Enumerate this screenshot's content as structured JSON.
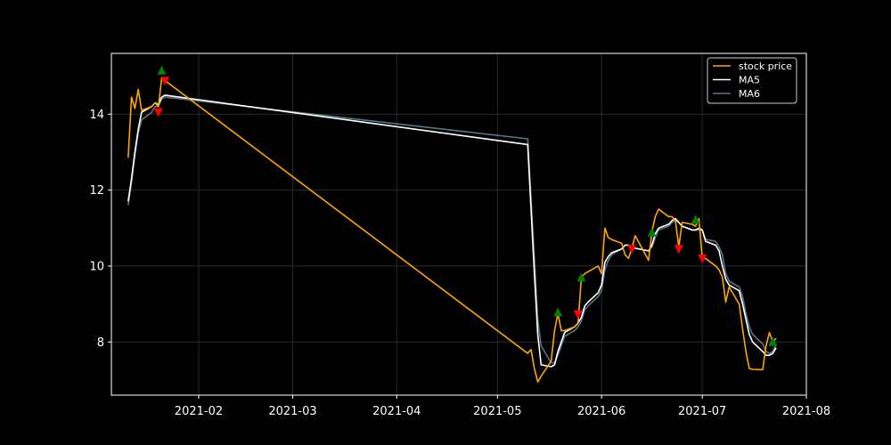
{
  "chart_data": {
    "type": "line",
    "title": "",
    "xlabel": "",
    "ylabel": "",
    "background": "#000000",
    "grid": true,
    "legend_position": "top-right",
    "xlim": [
      "2021-01-06",
      "2021-08-01"
    ],
    "ylim": [
      6.6,
      15.6
    ],
    "x_ticks": [
      "2021-02",
      "2021-03",
      "2021-04",
      "2021-05",
      "2021-06",
      "2021-07",
      "2021-08"
    ],
    "y_ticks": [
      8,
      10,
      12,
      14
    ],
    "series": [
      {
        "name": "stock price",
        "color": "#ffa500",
        "points": [
          [
            "2021-01-11",
            12.85
          ],
          [
            "2021-01-12",
            14.45
          ],
          [
            "2021-01-13",
            14.15
          ],
          [
            "2021-01-14",
            14.65
          ],
          [
            "2021-01-15",
            14.1
          ],
          [
            "2021-01-18",
            14.2
          ],
          [
            "2021-01-19",
            14.3
          ],
          [
            "2021-01-20",
            14.2
          ],
          [
            "2021-01-21",
            14.95
          ],
          [
            "2021-05-10",
            7.7
          ],
          [
            "2021-05-11",
            7.8
          ],
          [
            "2021-05-12",
            7.3
          ],
          [
            "2021-05-13",
            6.95
          ],
          [
            "2021-05-14",
            7.1
          ],
          [
            "2021-05-17",
            7.5
          ],
          [
            "2021-05-18",
            8.3
          ],
          [
            "2021-05-19",
            8.75
          ],
          [
            "2021-05-20",
            8.3
          ],
          [
            "2021-05-21",
            8.3
          ],
          [
            "2021-05-24",
            8.4
          ],
          [
            "2021-05-25",
            8.5
          ],
          [
            "2021-05-26",
            9.7
          ],
          [
            "2021-05-27",
            9.8
          ],
          [
            "2021-05-28",
            9.85
          ],
          [
            "2021-05-31",
            10.0
          ],
          [
            "2021-06-01",
            9.8
          ],
          [
            "2021-06-02",
            11.0
          ],
          [
            "2021-06-03",
            10.75
          ],
          [
            "2021-06-04",
            10.7
          ],
          [
            "2021-06-07",
            10.6
          ],
          [
            "2021-06-08",
            10.3
          ],
          [
            "2021-06-09",
            10.2
          ],
          [
            "2021-06-10",
            10.45
          ],
          [
            "2021-06-11",
            10.8
          ],
          [
            "2021-06-15",
            10.15
          ],
          [
            "2021-06-16",
            10.9
          ],
          [
            "2021-06-17",
            11.3
          ],
          [
            "2021-06-18",
            11.5
          ],
          [
            "2021-06-21",
            11.3
          ],
          [
            "2021-06-22",
            11.3
          ],
          [
            "2021-06-23",
            11.2
          ],
          [
            "2021-06-24",
            10.5
          ],
          [
            "2021-06-25",
            11.15
          ],
          [
            "2021-06-28",
            11.1
          ],
          [
            "2021-06-29",
            11.05
          ],
          [
            "2021-06-30",
            11.25
          ],
          [
            "2021-07-01",
            10.2
          ],
          [
            "2021-07-02",
            10.2
          ],
          [
            "2021-07-05",
            10.0
          ],
          [
            "2021-07-06",
            9.9
          ],
          [
            "2021-07-07",
            9.7
          ],
          [
            "2021-07-08",
            9.05
          ],
          [
            "2021-07-09",
            9.45
          ],
          [
            "2021-07-12",
            9.0
          ],
          [
            "2021-07-13",
            8.35
          ],
          [
            "2021-07-14",
            7.75
          ],
          [
            "2021-07-15",
            7.3
          ],
          [
            "2021-07-16",
            7.28
          ],
          [
            "2021-07-19",
            7.27
          ],
          [
            "2021-07-20",
            7.9
          ],
          [
            "2021-07-21",
            8.25
          ],
          [
            "2021-07-22",
            8.0
          ],
          [
            "2021-07-23",
            8.1
          ]
        ]
      },
      {
        "name": "MA5",
        "color": "#ffffff",
        "points": [
          [
            "2021-01-11",
            11.7
          ],
          [
            "2021-01-12",
            12.3
          ],
          [
            "2021-01-13",
            13.0
          ],
          [
            "2021-01-14",
            13.6
          ],
          [
            "2021-01-15",
            14.05
          ],
          [
            "2021-01-18",
            14.2
          ],
          [
            "2021-01-19",
            14.3
          ],
          [
            "2021-01-20",
            14.25
          ],
          [
            "2021-01-21",
            14.45
          ],
          [
            "2021-01-22",
            14.5
          ],
          [
            "2021-05-10",
            13.2
          ],
          [
            "2021-05-11",
            11.5
          ],
          [
            "2021-05-12",
            9.8
          ],
          [
            "2021-05-13",
            8.2
          ],
          [
            "2021-05-14",
            7.4
          ],
          [
            "2021-05-17",
            7.35
          ],
          [
            "2021-05-18",
            7.4
          ],
          [
            "2021-05-19",
            7.75
          ],
          [
            "2021-05-20",
            8.0
          ],
          [
            "2021-05-21",
            8.25
          ],
          [
            "2021-05-24",
            8.4
          ],
          [
            "2021-05-25",
            8.5
          ],
          [
            "2021-05-26",
            8.65
          ],
          [
            "2021-05-27",
            8.95
          ],
          [
            "2021-05-28",
            9.05
          ],
          [
            "2021-05-31",
            9.3
          ],
          [
            "2021-06-01",
            9.5
          ],
          [
            "2021-06-02",
            10.1
          ],
          [
            "2021-06-03",
            10.25
          ],
          [
            "2021-06-04",
            10.35
          ],
          [
            "2021-06-07",
            10.45
          ],
          [
            "2021-06-08",
            10.55
          ],
          [
            "2021-06-09",
            10.55
          ],
          [
            "2021-06-10",
            10.5
          ],
          [
            "2021-06-11",
            10.47
          ],
          [
            "2021-06-15",
            10.4
          ],
          [
            "2021-06-16",
            10.55
          ],
          [
            "2021-06-17",
            10.85
          ],
          [
            "2021-06-18",
            11.0
          ],
          [
            "2021-06-21",
            11.1
          ],
          [
            "2021-06-22",
            11.2
          ],
          [
            "2021-06-23",
            11.25
          ],
          [
            "2021-06-24",
            11.15
          ],
          [
            "2021-06-25",
            11.05
          ],
          [
            "2021-06-28",
            10.95
          ],
          [
            "2021-06-29",
            10.95
          ],
          [
            "2021-06-30",
            11.0
          ],
          [
            "2021-07-01",
            10.95
          ],
          [
            "2021-07-02",
            10.65
          ],
          [
            "2021-07-05",
            10.55
          ],
          [
            "2021-07-06",
            10.4
          ],
          [
            "2021-07-07",
            10.0
          ],
          [
            "2021-07-08",
            9.65
          ],
          [
            "2021-07-09",
            9.5
          ],
          [
            "2021-07-12",
            9.35
          ],
          [
            "2021-07-13",
            9.0
          ],
          [
            "2021-07-14",
            8.6
          ],
          [
            "2021-07-15",
            8.2
          ],
          [
            "2021-07-16",
            8.0
          ],
          [
            "2021-07-19",
            7.75
          ],
          [
            "2021-07-20",
            7.65
          ],
          [
            "2021-07-21",
            7.65
          ],
          [
            "2021-07-22",
            7.7
          ],
          [
            "2021-07-23",
            7.85
          ]
        ]
      },
      {
        "name": "MA6",
        "color": "#5a7583",
        "points": [
          [
            "2021-01-11",
            11.6
          ],
          [
            "2021-01-12",
            12.2
          ],
          [
            "2021-01-13",
            12.9
          ],
          [
            "2021-01-14",
            13.5
          ],
          [
            "2021-01-15",
            13.85
          ],
          [
            "2021-01-18",
            14.05
          ],
          [
            "2021-01-19",
            14.2
          ],
          [
            "2021-01-20",
            14.2
          ],
          [
            "2021-01-21",
            14.4
          ],
          [
            "2021-01-22",
            14.45
          ],
          [
            "2021-05-10",
            13.35
          ],
          [
            "2021-05-11",
            11.8
          ],
          [
            "2021-05-12",
            10.2
          ],
          [
            "2021-05-13",
            8.6
          ],
          [
            "2021-05-14",
            7.9
          ],
          [
            "2021-05-17",
            7.45
          ],
          [
            "2021-05-18",
            7.45
          ],
          [
            "2021-05-19",
            7.65
          ],
          [
            "2021-05-20",
            7.9
          ],
          [
            "2021-05-21",
            8.15
          ],
          [
            "2021-05-24",
            8.3
          ],
          [
            "2021-05-25",
            8.4
          ],
          [
            "2021-05-26",
            8.55
          ],
          [
            "2021-05-27",
            8.85
          ],
          [
            "2021-05-28",
            8.95
          ],
          [
            "2021-05-31",
            9.2
          ],
          [
            "2021-06-01",
            9.35
          ],
          [
            "2021-06-02",
            9.9
          ],
          [
            "2021-06-03",
            10.15
          ],
          [
            "2021-06-04",
            10.3
          ],
          [
            "2021-06-07",
            10.45
          ],
          [
            "2021-06-08",
            10.55
          ],
          [
            "2021-06-09",
            10.55
          ],
          [
            "2021-06-10",
            10.5
          ],
          [
            "2021-06-11",
            10.47
          ],
          [
            "2021-06-15",
            10.4
          ],
          [
            "2021-06-16",
            10.5
          ],
          [
            "2021-06-17",
            10.75
          ],
          [
            "2021-06-18",
            10.95
          ],
          [
            "2021-06-21",
            11.05
          ],
          [
            "2021-06-22",
            11.15
          ],
          [
            "2021-06-23",
            11.2
          ],
          [
            "2021-06-24",
            11.15
          ],
          [
            "2021-06-25",
            11.05
          ],
          [
            "2021-06-28",
            10.95
          ],
          [
            "2021-06-29",
            10.95
          ],
          [
            "2021-06-30",
            10.95
          ],
          [
            "2021-07-01",
            10.95
          ],
          [
            "2021-07-02",
            10.7
          ],
          [
            "2021-07-05",
            10.65
          ],
          [
            "2021-07-06",
            10.5
          ],
          [
            "2021-07-07",
            10.3
          ],
          [
            "2021-07-08",
            9.8
          ],
          [
            "2021-07-09",
            9.6
          ],
          [
            "2021-07-12",
            9.45
          ],
          [
            "2021-07-13",
            9.2
          ],
          [
            "2021-07-14",
            8.75
          ],
          [
            "2021-07-15",
            8.4
          ],
          [
            "2021-07-16",
            8.2
          ],
          [
            "2021-07-19",
            7.95
          ],
          [
            "2021-07-20",
            7.75
          ],
          [
            "2021-07-21",
            7.7
          ],
          [
            "2021-07-22",
            7.75
          ],
          [
            "2021-07-23",
            7.95
          ]
        ]
      }
    ],
    "buy_signals": {
      "color": "#008000",
      "points": [
        [
          "2021-01-21",
          15.15
        ],
        [
          "2021-05-19",
          8.78
        ],
        [
          "2021-05-26",
          9.7
        ],
        [
          "2021-06-16",
          10.88
        ],
        [
          "2021-06-29",
          11.22
        ],
        [
          "2021-07-22",
          8.0
        ]
      ]
    },
    "sell_signals": {
      "color": "#ff0000",
      "points": [
        [
          "2021-01-20",
          14.05
        ],
        [
          "2021-01-22",
          14.88
        ],
        [
          "2021-05-25",
          8.73
        ],
        [
          "2021-06-10",
          10.45
        ],
        [
          "2021-06-24",
          10.45
        ],
        [
          "2021-07-01",
          10.2
        ]
      ]
    }
  }
}
